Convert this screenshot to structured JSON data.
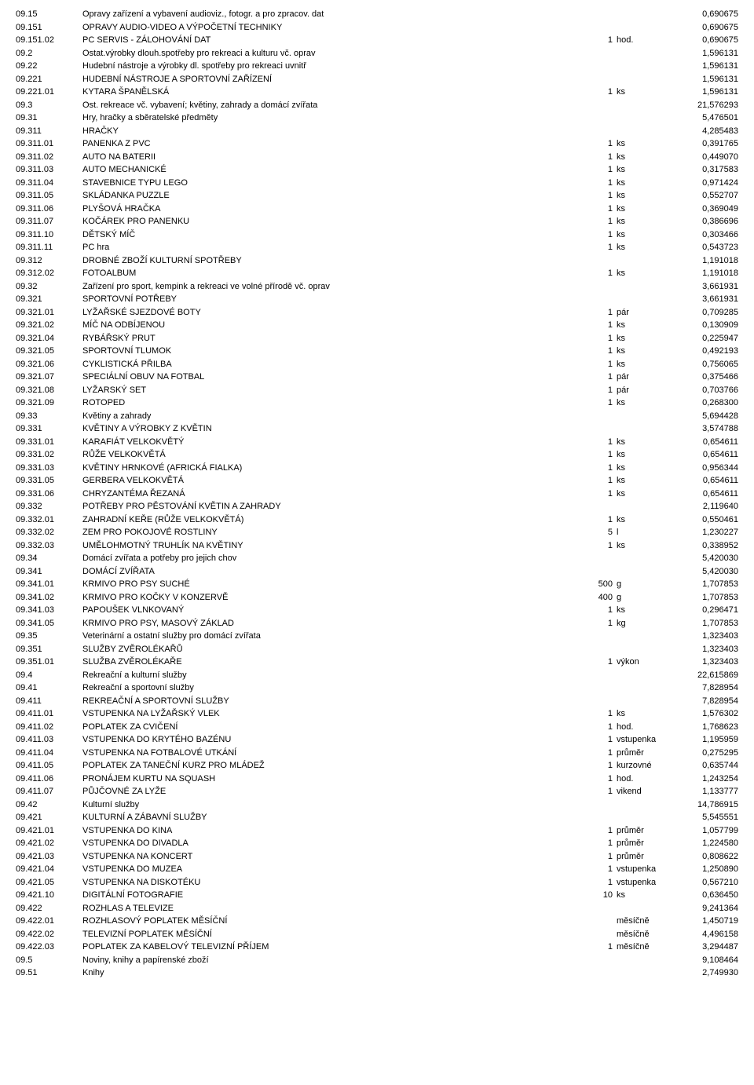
{
  "rows": [
    {
      "code": "09.15",
      "desc": "Opravy zařízení a vybavení audioviz., fotogr. a pro zpracov. dat",
      "qty": "",
      "unit": "",
      "val": "0,690675"
    },
    {
      "code": "09.151",
      "desc": "OPRAVY AUDIO-VIDEO A VÝPOČETNÍ TECHNIKY",
      "qty": "",
      "unit": "",
      "val": "0,690675"
    },
    {
      "code": "09.151.02",
      "desc": "PC SERVIS - ZÁLOHOVÁNÍ DAT",
      "qty": "1",
      "unit": "hod.",
      "val": "0,690675"
    },
    {
      "code": "09.2",
      "desc": "Ostat.výrobky dlouh.spotřeby pro rekreaci a kulturu vč. oprav",
      "qty": "",
      "unit": "",
      "val": "1,596131"
    },
    {
      "code": "09.22",
      "desc": "Hudební nástroje a výrobky dl. spotřeby pro rekreaci uvnitř",
      "qty": "",
      "unit": "",
      "val": "1,596131"
    },
    {
      "code": "09.221",
      "desc": "HUDEBNÍ NÁSTROJE A SPORTOVNÍ ZAŘÍZENÍ",
      "qty": "",
      "unit": "",
      "val": "1,596131"
    },
    {
      "code": "09.221.01",
      "desc": "KYTARA ŠPANĚLSKÁ",
      "qty": "1",
      "unit": "ks",
      "val": "1,596131"
    },
    {
      "code": "09.3",
      "desc": "Ost. rekreace vč. vybavení; květiny, zahrady a domácí zvířata",
      "qty": "",
      "unit": "",
      "val": "21,576293"
    },
    {
      "code": "09.31",
      "desc": "Hry, hračky a sběratelské předměty",
      "qty": "",
      "unit": "",
      "val": "5,476501"
    },
    {
      "code": "09.311",
      "desc": "HRAČKY",
      "qty": "",
      "unit": "",
      "val": "4,285483"
    },
    {
      "code": "09.311.01",
      "desc": "PANENKA Z PVC",
      "qty": "1",
      "unit": "ks",
      "val": "0,391765"
    },
    {
      "code": "09.311.02",
      "desc": "AUTO NA BATERII",
      "qty": "1",
      "unit": "ks",
      "val": "0,449070"
    },
    {
      "code": "09.311.03",
      "desc": "AUTO MECHANICKÉ",
      "qty": "1",
      "unit": "ks",
      "val": "0,317583"
    },
    {
      "code": "09.311.04",
      "desc": "STAVEBNICE TYPU LEGO",
      "qty": "1",
      "unit": "ks",
      "val": "0,971424"
    },
    {
      "code": "09.311.05",
      "desc": "SKLÁDANKA PUZZLE",
      "qty": "1",
      "unit": "ks",
      "val": "0,552707"
    },
    {
      "code": "09.311.06",
      "desc": "PLYŠOVÁ HRAČKA",
      "qty": "1",
      "unit": "ks",
      "val": "0,369049"
    },
    {
      "code": "09.311.07",
      "desc": "KOČÁREK PRO PANENKU",
      "qty": "1",
      "unit": "ks",
      "val": "0,386696"
    },
    {
      "code": "09.311.10",
      "desc": "DĚTSKÝ MÍČ",
      "qty": "1",
      "unit": "ks",
      "val": "0,303466"
    },
    {
      "code": "09.311.11",
      "desc": "PC hra",
      "qty": "1",
      "unit": "ks",
      "val": "0,543723"
    },
    {
      "code": "09.312",
      "desc": "DROBNÉ ZBOŽÍ KULTURNÍ SPOTŘEBY",
      "qty": "",
      "unit": "",
      "val": "1,191018"
    },
    {
      "code": "09.312.02",
      "desc": "FOTOALBUM",
      "qty": "1",
      "unit": "ks",
      "val": "1,191018"
    },
    {
      "code": "09.32",
      "desc": "Zařízení pro sport, kempink a rekreaci ve volné přírodě vč. oprav",
      "qty": "",
      "unit": "",
      "val": "3,661931"
    },
    {
      "code": "09.321",
      "desc": "SPORTOVNÍ POTŘEBY",
      "qty": "",
      "unit": "",
      "val": "3,661931"
    },
    {
      "code": "09.321.01",
      "desc": "LYŽAŘSKÉ SJEZDOVÉ BOTY",
      "qty": "1",
      "unit": "pár",
      "val": "0,709285"
    },
    {
      "code": "09.321.02",
      "desc": "MÍČ NA ODBÍJENOU",
      "qty": "1",
      "unit": "ks",
      "val": "0,130909"
    },
    {
      "code": "09.321.04",
      "desc": "RYBÁŘSKÝ PRUT",
      "qty": "1",
      "unit": "ks",
      "val": "0,225947"
    },
    {
      "code": "09.321.05",
      "desc": "SPORTOVNÍ TLUMOK",
      "qty": "1",
      "unit": "ks",
      "val": "0,492193"
    },
    {
      "code": "09.321.06",
      "desc": "CYKLISTICKÁ PŘILBA",
      "qty": "1",
      "unit": "ks",
      "val": "0,756065"
    },
    {
      "code": "09.321.07",
      "desc": "SPECIÁLNÍ OBUV NA FOTBAL",
      "qty": "1",
      "unit": "pár",
      "val": "0,375466"
    },
    {
      "code": "09.321.08",
      "desc": "LYŽARSKÝ SET",
      "qty": "1",
      "unit": "pár",
      "val": "0,703766"
    },
    {
      "code": "09.321.09",
      "desc": "ROTOPED",
      "qty": "1",
      "unit": "ks",
      "val": "0,268300"
    },
    {
      "code": "09.33",
      "desc": "Květiny a zahrady",
      "qty": "",
      "unit": "",
      "val": "5,694428"
    },
    {
      "code": "09.331",
      "desc": "KVĚTINY A VÝROBKY Z KVĚTIN",
      "qty": "",
      "unit": "",
      "val": "3,574788"
    },
    {
      "code": "09.331.01",
      "desc": "KARAFIÁT VELKOKVĚTÝ",
      "qty": "1",
      "unit": "ks",
      "val": "0,654611"
    },
    {
      "code": "09.331.02",
      "desc": "RŮŽE VELKOKVĚTÁ",
      "qty": "1",
      "unit": "ks",
      "val": "0,654611"
    },
    {
      "code": "09.331.03",
      "desc": "KVĚTINY HRNKOVÉ (AFRICKÁ FIALKA)",
      "qty": "1",
      "unit": "ks",
      "val": "0,956344"
    },
    {
      "code": "09.331.05",
      "desc": "GERBERA VELKOKVĚTÁ",
      "qty": "1",
      "unit": "ks",
      "val": "0,654611"
    },
    {
      "code": "09.331.06",
      "desc": "CHRYZANTÉMA ŘEZANÁ",
      "qty": "1",
      "unit": "ks",
      "val": "0,654611"
    },
    {
      "code": "09.332",
      "desc": "POTŘEBY PRO PĚSTOVÁNÍ KVĚTIN A ZAHRADY",
      "qty": "",
      "unit": "",
      "val": "2,119640"
    },
    {
      "code": "09.332.01",
      "desc": "ZAHRADNÍ KEŘE (RŮŽE VELKOKVĚTÁ)",
      "qty": "1",
      "unit": "ks",
      "val": "0,550461"
    },
    {
      "code": "09.332.02",
      "desc": "ZEM PRO POKOJOVÉ ROSTLINY",
      "qty": "5",
      "unit": "l",
      "val": "1,230227"
    },
    {
      "code": "09.332.03",
      "desc": "UMĚLOHMOTNÝ TRUHLÍK NA KVĚTINY",
      "qty": "1",
      "unit": "ks",
      "val": "0,338952"
    },
    {
      "code": "09.34",
      "desc": "Domácí zvířata a potřeby pro jejich chov",
      "qty": "",
      "unit": "",
      "val": "5,420030"
    },
    {
      "code": "09.341",
      "desc": "DOMÁCÍ ZVÍŘATA",
      "qty": "",
      "unit": "",
      "val": "5,420030"
    },
    {
      "code": "09.341.01",
      "desc": "KRMIVO PRO PSY SUCHÉ",
      "qty": "500",
      "unit": "g",
      "val": "1,707853"
    },
    {
      "code": "09.341.02",
      "desc": "KRMIVO PRO KOČKY V KONZERVĚ",
      "qty": "400",
      "unit": "g",
      "val": "1,707853"
    },
    {
      "code": "09.341.03",
      "desc": "PAPOUŠEK VLNKOVANÝ",
      "qty": "1",
      "unit": "ks",
      "val": "0,296471"
    },
    {
      "code": "09.341.05",
      "desc": "KRMIVO PRO PSY, MASOVÝ ZÁKLAD",
      "qty": "1",
      "unit": "kg",
      "val": "1,707853"
    },
    {
      "code": "09.35",
      "desc": "Veterinární a ostatní služby pro domácí zvířata",
      "qty": "",
      "unit": "",
      "val": "1,323403"
    },
    {
      "code": "09.351",
      "desc": "SLUŽBY ZVĚROLÉKAŘŮ",
      "qty": "",
      "unit": "",
      "val": "1,323403"
    },
    {
      "code": "09.351.01",
      "desc": "SLUŽBA ZVĚROLÉKAŘE",
      "qty": "1",
      "unit": "výkon",
      "val": "1,323403"
    },
    {
      "code": "09.4",
      "desc": "Rekreační a kulturní služby",
      "qty": "",
      "unit": "",
      "val": "22,615869"
    },
    {
      "code": "09.41",
      "desc": "Rekreační a sportovní služby",
      "qty": "",
      "unit": "",
      "val": "7,828954"
    },
    {
      "code": "09.411",
      "desc": "REKREAČNÍ A SPORTOVNÍ SLUŽBY",
      "qty": "",
      "unit": "",
      "val": "7,828954"
    },
    {
      "code": "09.411.01",
      "desc": "VSTUPENKA NA LYŽAŘSKÝ VLEK",
      "qty": "1",
      "unit": "ks",
      "val": "1,576302"
    },
    {
      "code": "09.411.02",
      "desc": "POPLATEK ZA CVIČENÍ",
      "qty": "1",
      "unit": "hod.",
      "val": "1,768623"
    },
    {
      "code": "09.411.03",
      "desc": "VSTUPENKA DO KRYTÉHO BAZÉNU",
      "qty": "1",
      "unit": "vstupenka",
      "val": "1,195959"
    },
    {
      "code": "09.411.04",
      "desc": "VSTUPENKA NA FOTBALOVÉ UTKÁNÍ",
      "qty": "1",
      "unit": "průměr",
      "val": "0,275295"
    },
    {
      "code": "09.411.05",
      "desc": "POPLATEK ZA TANEČNÍ KURZ PRO MLÁDEŽ",
      "qty": "1",
      "unit": "kurzovné",
      "val": "0,635744"
    },
    {
      "code": "09.411.06",
      "desc": "PRONÁJEM KURTU NA SQUASH",
      "qty": "1",
      "unit": "hod.",
      "val": "1,243254"
    },
    {
      "code": "09.411.07",
      "desc": "PŮJČOVNÉ ZA LYŽE",
      "qty": "1",
      "unit": "vikend",
      "val": "1,133777"
    },
    {
      "code": "09.42",
      "desc": "Kulturní služby",
      "qty": "",
      "unit": "",
      "val": "14,786915"
    },
    {
      "code": "09.421",
      "desc": "KULTURNÍ A ZÁBAVNÍ SLUŽBY",
      "qty": "",
      "unit": "",
      "val": "5,545551"
    },
    {
      "code": "09.421.01",
      "desc": "VSTUPENKA DO KINA",
      "qty": "1",
      "unit": "průměr",
      "val": "1,057799"
    },
    {
      "code": "09.421.02",
      "desc": "VSTUPENKA DO DIVADLA",
      "qty": "1",
      "unit": "průměr",
      "val": "1,224580"
    },
    {
      "code": "09.421.03",
      "desc": "VSTUPENKA NA KONCERT",
      "qty": "1",
      "unit": "průměr",
      "val": "0,808622"
    },
    {
      "code": "09.421.04",
      "desc": "VSTUPENKA DO MUZEA",
      "qty": "1",
      "unit": "vstupenka",
      "val": "1,250890"
    },
    {
      "code": "09.421.05",
      "desc": "VSTUPENKA NA DISKOTÉKU",
      "qty": "1",
      "unit": "vstupenka",
      "val": "0,567210"
    },
    {
      "code": "09.421.10",
      "desc": "DIGITÁLNÍ FOTOGRAFIE",
      "qty": "10",
      "unit": "ks",
      "val": "0,636450"
    },
    {
      "code": "09.422",
      "desc": "ROZHLAS A TELEVIZE",
      "qty": "",
      "unit": "",
      "val": "9,241364"
    },
    {
      "code": "09.422.01",
      "desc": "ROZHLASOVÝ POPLATEK MĚSÍČNÍ",
      "qty": "",
      "unit": "měsíčně",
      "val": "1,450719"
    },
    {
      "code": "09.422.02",
      "desc": "TELEVIZNÍ POPLATEK MĚSÍČNÍ",
      "qty": "",
      "unit": "měsíčně",
      "val": "4,496158"
    },
    {
      "code": "09.422.03",
      "desc": "POPLATEK ZA KABELOVÝ TELEVIZNÍ PŘÍJEM",
      "qty": "1",
      "unit": "měsíčně",
      "val": "3,294487"
    },
    {
      "code": "09.5",
      "desc": "Noviny, knihy a papírenské zboží",
      "qty": "",
      "unit": "",
      "val": "9,108464"
    },
    {
      "code": "09.51",
      "desc": "Knihy",
      "qty": "",
      "unit": "",
      "val": "2,749930"
    }
  ]
}
